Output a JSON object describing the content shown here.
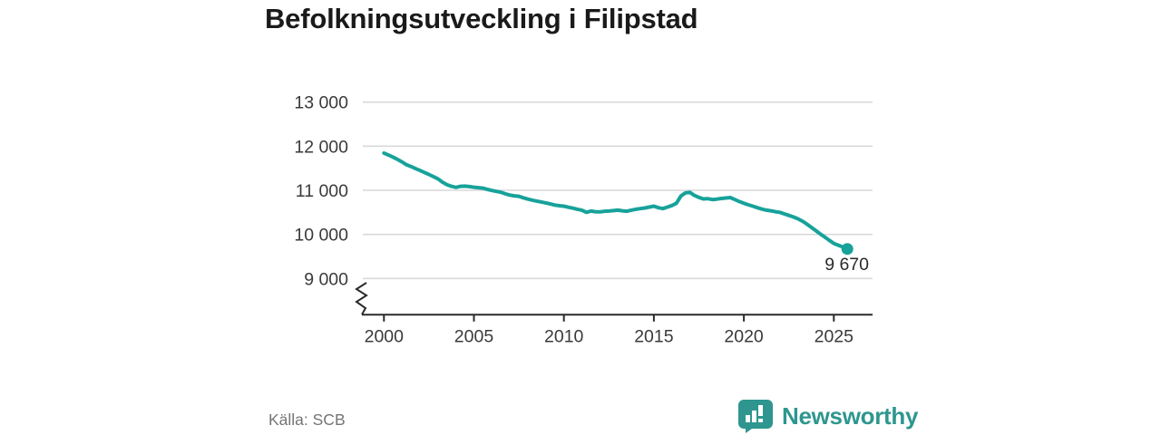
{
  "title": "Befolkningsutveckling i Filipstad",
  "source": "Källa: SCB",
  "brand": {
    "name": "Newsworthy",
    "color": "#2E968F"
  },
  "colors": {
    "line": "#17A29A",
    "grid": "#d9d9d9",
    "axis": "#2b2b2b",
    "tick_label": "#3a3a3a",
    "annotation": "#2b2b2b"
  },
  "chart_data": {
    "type": "line",
    "title": "Befolkningsutveckling i Filipstad",
    "xlabel": "",
    "ylabel": "",
    "grid": "horizontal gridlines only",
    "legend": "none",
    "axis_break_below": 9000,
    "ylim_visible": [
      9000,
      13000
    ],
    "xlim": [
      1998.8,
      2027.2
    ],
    "y_ticks": [
      {
        "value": 13000,
        "label": "13 000"
      },
      {
        "value": 12000,
        "label": "12 000"
      },
      {
        "value": 11000,
        "label": "11 000"
      },
      {
        "value": 10000,
        "label": "10 000"
      },
      {
        "value": 9000,
        "label": "9 000"
      }
    ],
    "x_ticks": [
      {
        "value": 2000,
        "label": "2000"
      },
      {
        "value": 2005,
        "label": "2005"
      },
      {
        "value": 2010,
        "label": "2010"
      },
      {
        "value": 2015,
        "label": "2015"
      },
      {
        "value": 2020,
        "label": "2020"
      },
      {
        "value": 2025,
        "label": "2025"
      }
    ],
    "end_label": "9 670",
    "end_value": 9670,
    "series": [
      {
        "name": "Befolkning",
        "points": [
          [
            2000,
            11845
          ],
          [
            2000.25,
            11800
          ],
          [
            2000.5,
            11755
          ],
          [
            2000.75,
            11700
          ],
          [
            2001,
            11645
          ],
          [
            2001.25,
            11580
          ],
          [
            2001.5,
            11540
          ],
          [
            2001.75,
            11495
          ],
          [
            2002,
            11450
          ],
          [
            2002.25,
            11405
          ],
          [
            2002.5,
            11360
          ],
          [
            2002.75,
            11310
          ],
          [
            2003,
            11260
          ],
          [
            2003.25,
            11185
          ],
          [
            2003.5,
            11130
          ],
          [
            2003.75,
            11090
          ],
          [
            2004,
            11065
          ],
          [
            2004.25,
            11090
          ],
          [
            2004.5,
            11095
          ],
          [
            2004.75,
            11085
          ],
          [
            2005,
            11070
          ],
          [
            2005.25,
            11060
          ],
          [
            2005.5,
            11050
          ],
          [
            2005.75,
            11020
          ],
          [
            2006,
            10995
          ],
          [
            2006.25,
            10975
          ],
          [
            2006.5,
            10955
          ],
          [
            2006.75,
            10920
          ],
          [
            2007,
            10890
          ],
          [
            2007.25,
            10875
          ],
          [
            2007.5,
            10865
          ],
          [
            2007.75,
            10830
          ],
          [
            2008,
            10800
          ],
          [
            2008.25,
            10775
          ],
          [
            2008.5,
            10755
          ],
          [
            2008.75,
            10735
          ],
          [
            2009,
            10715
          ],
          [
            2009.25,
            10690
          ],
          [
            2009.5,
            10665
          ],
          [
            2009.75,
            10650
          ],
          [
            2010,
            10640
          ],
          [
            2010.25,
            10615
          ],
          [
            2010.5,
            10595
          ],
          [
            2010.75,
            10570
          ],
          [
            2011,
            10550
          ],
          [
            2011.25,
            10500
          ],
          [
            2011.5,
            10530
          ],
          [
            2011.75,
            10515
          ],
          [
            2012,
            10510
          ],
          [
            2012.25,
            10525
          ],
          [
            2012.5,
            10530
          ],
          [
            2012.75,
            10540
          ],
          [
            2013,
            10550
          ],
          [
            2013.25,
            10535
          ],
          [
            2013.5,
            10525
          ],
          [
            2013.75,
            10550
          ],
          [
            2014,
            10570
          ],
          [
            2014.25,
            10585
          ],
          [
            2014.5,
            10600
          ],
          [
            2014.75,
            10620
          ],
          [
            2015,
            10640
          ],
          [
            2015.25,
            10605
          ],
          [
            2015.5,
            10585
          ],
          [
            2015.75,
            10620
          ],
          [
            2016,
            10655
          ],
          [
            2016.25,
            10705
          ],
          [
            2016.5,
            10870
          ],
          [
            2016.75,
            10940
          ],
          [
            2017,
            10955
          ],
          [
            2017.25,
            10885
          ],
          [
            2017.5,
            10840
          ],
          [
            2017.75,
            10805
          ],
          [
            2018,
            10810
          ],
          [
            2018.25,
            10790
          ],
          [
            2018.5,
            10800
          ],
          [
            2018.75,
            10815
          ],
          [
            2019,
            10825
          ],
          [
            2019.25,
            10835
          ],
          [
            2019.5,
            10790
          ],
          [
            2019.75,
            10745
          ],
          [
            2020,
            10705
          ],
          [
            2020.25,
            10670
          ],
          [
            2020.5,
            10640
          ],
          [
            2020.75,
            10605
          ],
          [
            2021,
            10575
          ],
          [
            2021.25,
            10550
          ],
          [
            2021.5,
            10535
          ],
          [
            2021.75,
            10515
          ],
          [
            2022,
            10500
          ],
          [
            2022.25,
            10465
          ],
          [
            2022.5,
            10430
          ],
          [
            2022.75,
            10395
          ],
          [
            2023,
            10355
          ],
          [
            2023.25,
            10300
          ],
          [
            2023.5,
            10235
          ],
          [
            2023.75,
            10160
          ],
          [
            2024,
            10085
          ],
          [
            2024.25,
            10010
          ],
          [
            2024.5,
            9940
          ],
          [
            2024.75,
            9865
          ],
          [
            2025,
            9795
          ],
          [
            2025.25,
            9755
          ],
          [
            2025.5,
            9715
          ],
          [
            2025.75,
            9670
          ]
        ]
      }
    ]
  }
}
